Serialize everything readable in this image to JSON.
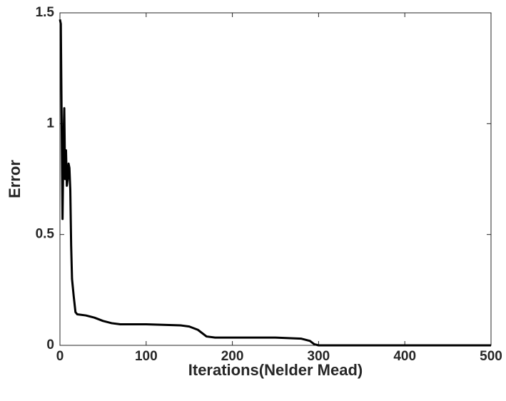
{
  "chart_data": {
    "type": "line",
    "x_label": "Iterations(Nelder Mead)",
    "y_label": "Error",
    "x": [
      0,
      1,
      2,
      3,
      4,
      5,
      6,
      7,
      8,
      9,
      10,
      11,
      12,
      13,
      14,
      16,
      18,
      20,
      30,
      40,
      50,
      60,
      70,
      100,
      140,
      150,
      160,
      170,
      180,
      200,
      250,
      280,
      290,
      295,
      300,
      500
    ],
    "values": [
      1.47,
      1.45,
      1.0,
      0.57,
      0.9,
      1.07,
      0.75,
      0.88,
      0.72,
      0.75,
      0.82,
      0.8,
      0.7,
      0.45,
      0.3,
      0.22,
      0.15,
      0.14,
      0.135,
      0.125,
      0.11,
      0.1,
      0.095,
      0.095,
      0.09,
      0.085,
      0.07,
      0.04,
      0.035,
      0.035,
      0.035,
      0.03,
      0.02,
      0.005,
      0,
      0
    ],
    "color": "#000000",
    "xlim": [
      0,
      500
    ],
    "xticks": [
      0,
      100,
      200,
      300,
      400,
      500
    ],
    "ylim": [
      0,
      1.5
    ],
    "yticks": [
      0,
      0.5,
      1,
      1.5
    ],
    "grid": false
  }
}
